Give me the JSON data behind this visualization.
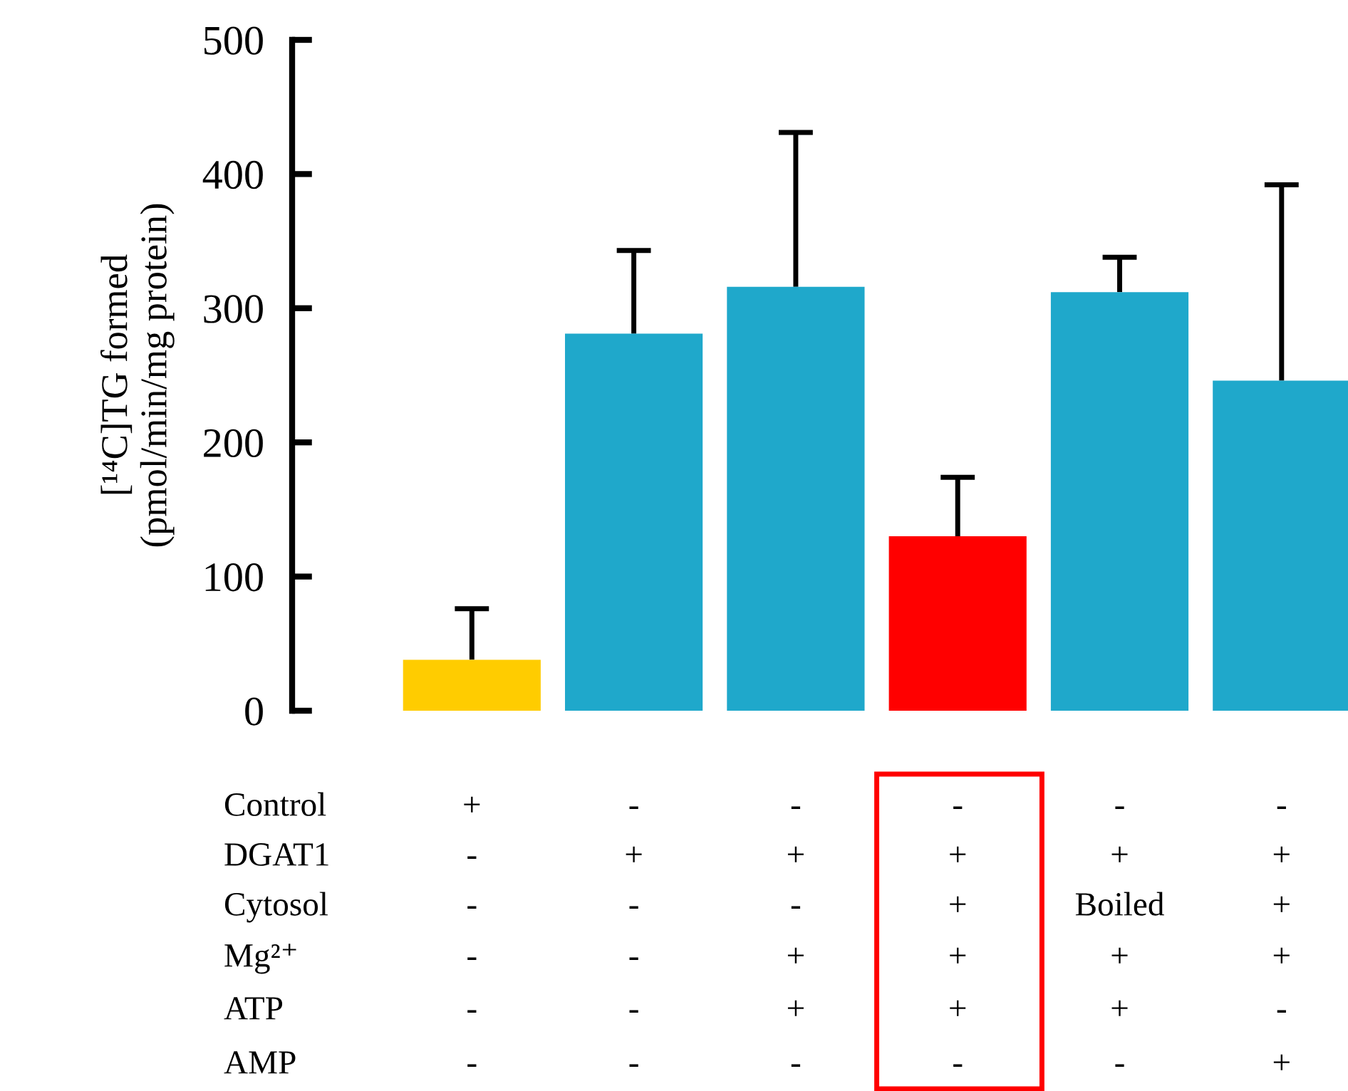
{
  "chart_data": {
    "type": "bar",
    "ylabel": "[¹⁴C]TG formed\n(pmol/min/mg protein)",
    "categories": [
      null,
      null,
      null,
      null,
      null,
      null
    ],
    "values": [
      38,
      281,
      316,
      130,
      312,
      246
    ],
    "colors": [
      "#ffcc00",
      "#1fa8cb",
      "#1fa8cb",
      "#ff0000",
      "#1fa8cb",
      "#1fa8cb"
    ],
    "errors": [
      [
        38,
        76
      ],
      [
        281,
        343
      ],
      [
        316,
        431
      ],
      [
        130,
        174
      ],
      [
        312,
        338
      ],
      [
        246,
        392
      ]
    ],
    "ylim": [
      0,
      500
    ],
    "yticks": [
      0,
      100,
      200,
      300,
      400,
      500
    ],
    "tick_labels": "y",
    "grid": false,
    "legend": false,
    "annotations": [
      "Control",
      "+",
      "-",
      "-",
      "-",
      "-",
      "-",
      "DGAT1",
      "-",
      "+",
      "+",
      "+",
      "+",
      "+",
      "Cytosol",
      "-",
      "-",
      "-",
      "+",
      "Boiled",
      "+",
      "Mg²⁺",
      "-",
      "-",
      "+",
      "+",
      "+",
      "+",
      "ATP",
      "-",
      "-",
      "+",
      "+",
      "+",
      "-",
      "AMP",
      "-",
      "-",
      "-",
      "-",
      "-",
      "+"
    ]
  }
}
